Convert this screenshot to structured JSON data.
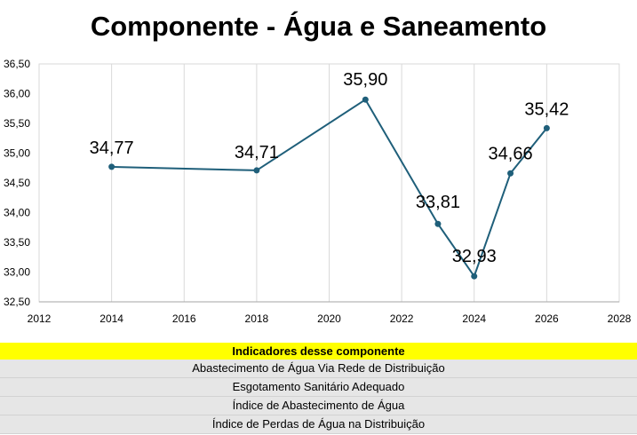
{
  "colors": {
    "line": "#1f5f7a",
    "header_bg": "#ffff00",
    "row_bg": "#e6e6e6",
    "grid": "#d9d9d9"
  },
  "chart_data": {
    "type": "line",
    "title": "Componente - Água e Saneamento",
    "xlabel": "",
    "ylabel": "",
    "xlim": [
      2012,
      2028
    ],
    "ylim": [
      32.5,
      36.5
    ],
    "x_ticks": [
      "2012",
      "2014",
      "2016",
      "2018",
      "2020",
      "2022",
      "2024",
      "2026",
      "2028"
    ],
    "y_ticks": [
      "32,50",
      "33,00",
      "33,50",
      "34,00",
      "34,50",
      "35,00",
      "35,50",
      "36,00",
      "36,50"
    ],
    "grid": "vertical",
    "series": [
      {
        "x": [
          2014,
          2018,
          2021,
          2023,
          2024,
          2025,
          2026
        ],
        "values": [
          34.77,
          34.71,
          35.9,
          33.81,
          32.93,
          34.66,
          35.42
        ],
        "labels": [
          "34,77",
          "34,71",
          "35,90",
          "33,81",
          "32,93",
          "34,66",
          "35,42"
        ]
      }
    ]
  },
  "indicators": {
    "header": "Indicadores desse componente",
    "items": [
      "Abastecimento de Água Via Rede de Distribuição",
      "Esgotamento Sanitário Adequado",
      "Índice de Abastecimento de Água",
      "Índice de Perdas de Água na Distribuição"
    ]
  }
}
